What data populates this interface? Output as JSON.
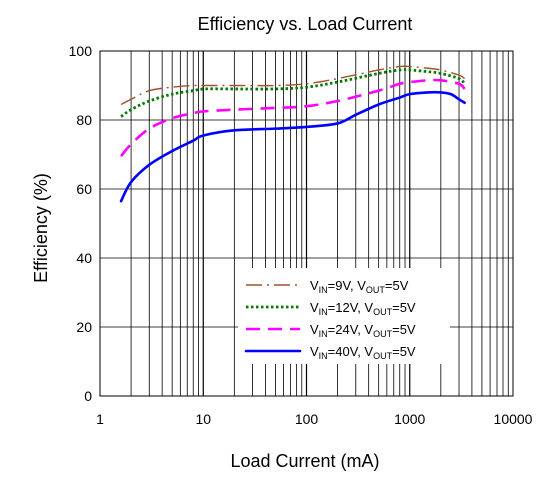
{
  "chart_data": {
    "type": "line",
    "title": "Efficiency vs. Load Current",
    "xlabel": "Load Current (mA)",
    "ylabel": "Efficiency (%)",
    "x_scale": "log",
    "xlim": [
      1,
      10000
    ],
    "ylim": [
      0,
      100
    ],
    "x_ticks": [
      "1",
      "10",
      "100",
      "1000",
      "10000"
    ],
    "y_ticks": [
      "0",
      "20",
      "40",
      "60",
      "80",
      "100"
    ],
    "grid": true,
    "legend_position": "bottom-right",
    "series": [
      {
        "name": "VIN=9V, VOUT=5V",
        "legend": {
          "a": "V",
          "a_sub": "IN",
          "b": "=9V, V",
          "b_sub": "OUT",
          "c": "=5V"
        },
        "color": "#a0522d",
        "style": "long-dash",
        "x": [
          1.6,
          2,
          3,
          5,
          8,
          10,
          20,
          50,
          100,
          200,
          500,
          800,
          1000,
          1500,
          2000,
          3000,
          3400
        ],
        "y": [
          84.5,
          86,
          88.5,
          89.5,
          90,
          90,
          90,
          90,
          90.5,
          92,
          94.5,
          95.5,
          95.5,
          95,
          94.5,
          93,
          92
        ]
      },
      {
        "name": "VIN=12V, VOUT=5V",
        "legend": {
          "a": "V",
          "a_sub": "IN",
          "b": "=12V, V",
          "b_sub": "OUT",
          "c": "=5V"
        },
        "color": "#007a00",
        "style": "dotted",
        "x": [
          1.6,
          2,
          3,
          5,
          8,
          10,
          20,
          50,
          100,
          200,
          500,
          800,
          1000,
          1500,
          2000,
          3000,
          3400
        ],
        "y": [
          81,
          83,
          85.5,
          87.5,
          88.5,
          89,
          89,
          89,
          89.5,
          91,
          93.5,
          94.5,
          94.5,
          94,
          93.5,
          92,
          90.5
        ]
      },
      {
        "name": "VIN=24V, VOUT=5V",
        "legend": {
          "a": "V",
          "a_sub": "IN",
          "b": "=24V, V",
          "b_sub": "OUT",
          "c": "=5V"
        },
        "color": "#ff00ff",
        "style": "dashed",
        "x": [
          1.6,
          2,
          3,
          5,
          8,
          10,
          20,
          50,
          100,
          200,
          500,
          800,
          1000,
          1500,
          2000,
          3000,
          3400
        ],
        "y": [
          69.5,
          73,
          77.5,
          80.5,
          82,
          82.5,
          83,
          83.5,
          84,
          85.5,
          88.5,
          90.5,
          91,
          91.5,
          91.5,
          90.5,
          89
        ]
      },
      {
        "name": "VIN=40V, VOUT=5V",
        "legend": {
          "a": "V",
          "a_sub": "IN",
          "b": "=40V, V",
          "b_sub": "OUT",
          "c": "=5V"
        },
        "color": "#0000ff",
        "style": "solid",
        "x": [
          1.6,
          2,
          3,
          5,
          8,
          10,
          20,
          50,
          100,
          200,
          300,
          500,
          800,
          1000,
          1500,
          2000,
          2500,
          3000,
          3400
        ],
        "y": [
          56.5,
          62,
          67,
          71,
          74,
          75.5,
          77,
          77.5,
          78,
          79,
          81.5,
          84.5,
          86.5,
          87.5,
          88,
          88,
          87.5,
          86,
          85
        ]
      }
    ]
  }
}
